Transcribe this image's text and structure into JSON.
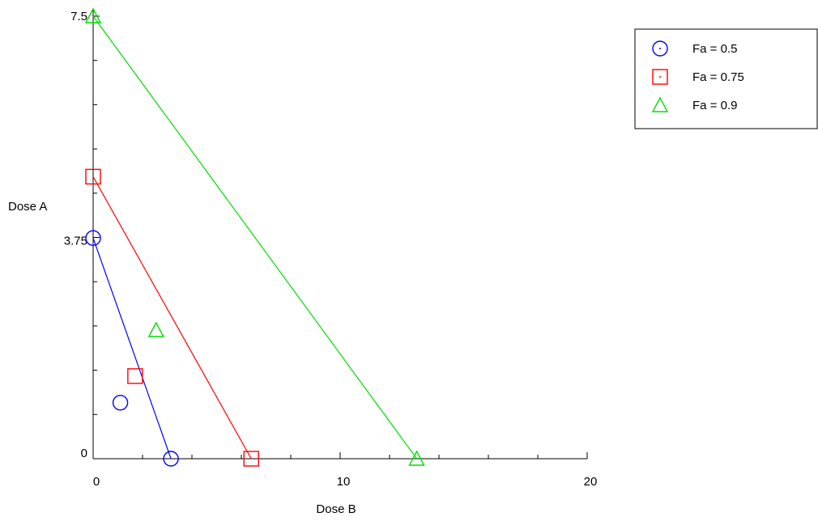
{
  "chart_data": {
    "type": "scatter",
    "title": "",
    "xlabel": "Dose B",
    "ylabel": "Dose A",
    "xlim": [
      0,
      20
    ],
    "ylim": [
      0,
      7.5
    ],
    "x_ticks": [
      {
        "value": 0,
        "label": "0"
      },
      {
        "value": 10,
        "label": "10"
      },
      {
        "value": 20,
        "label": "20"
      }
    ],
    "y_ticks": [
      {
        "value": 0,
        "label": "0"
      },
      {
        "value": 3.75,
        "label": "3.75"
      },
      {
        "value": 7.5,
        "label": "7.5"
      }
    ],
    "x_minor_step": 2,
    "y_minor_step": 0.75,
    "grid": false,
    "legend_position": "top-right",
    "series": [
      {
        "name": "Fa = 0.5",
        "color": "#0000ff",
        "marker": "circle",
        "line": [
          [
            0,
            3.74
          ],
          [
            3.15,
            0
          ]
        ],
        "points": [
          [
            0,
            3.74
          ],
          [
            3.15,
            0
          ],
          [
            1.1,
            0.95
          ]
        ]
      },
      {
        "name": "Fa = 0.75",
        "color": "#ff0000",
        "marker": "square",
        "line": [
          [
            0,
            4.78
          ],
          [
            6.4,
            0
          ]
        ],
        "points": [
          [
            0,
            4.78
          ],
          [
            6.4,
            0
          ],
          [
            1.7,
            1.4
          ]
        ]
      },
      {
        "name": "Fa = 0.9",
        "color": "#00dd00",
        "marker": "triangle",
        "line": [
          [
            0,
            7.5
          ],
          [
            13.1,
            0
          ]
        ],
        "points": [
          [
            0,
            7.5
          ],
          [
            13.1,
            0
          ],
          [
            2.55,
            2.18
          ]
        ]
      }
    ]
  }
}
